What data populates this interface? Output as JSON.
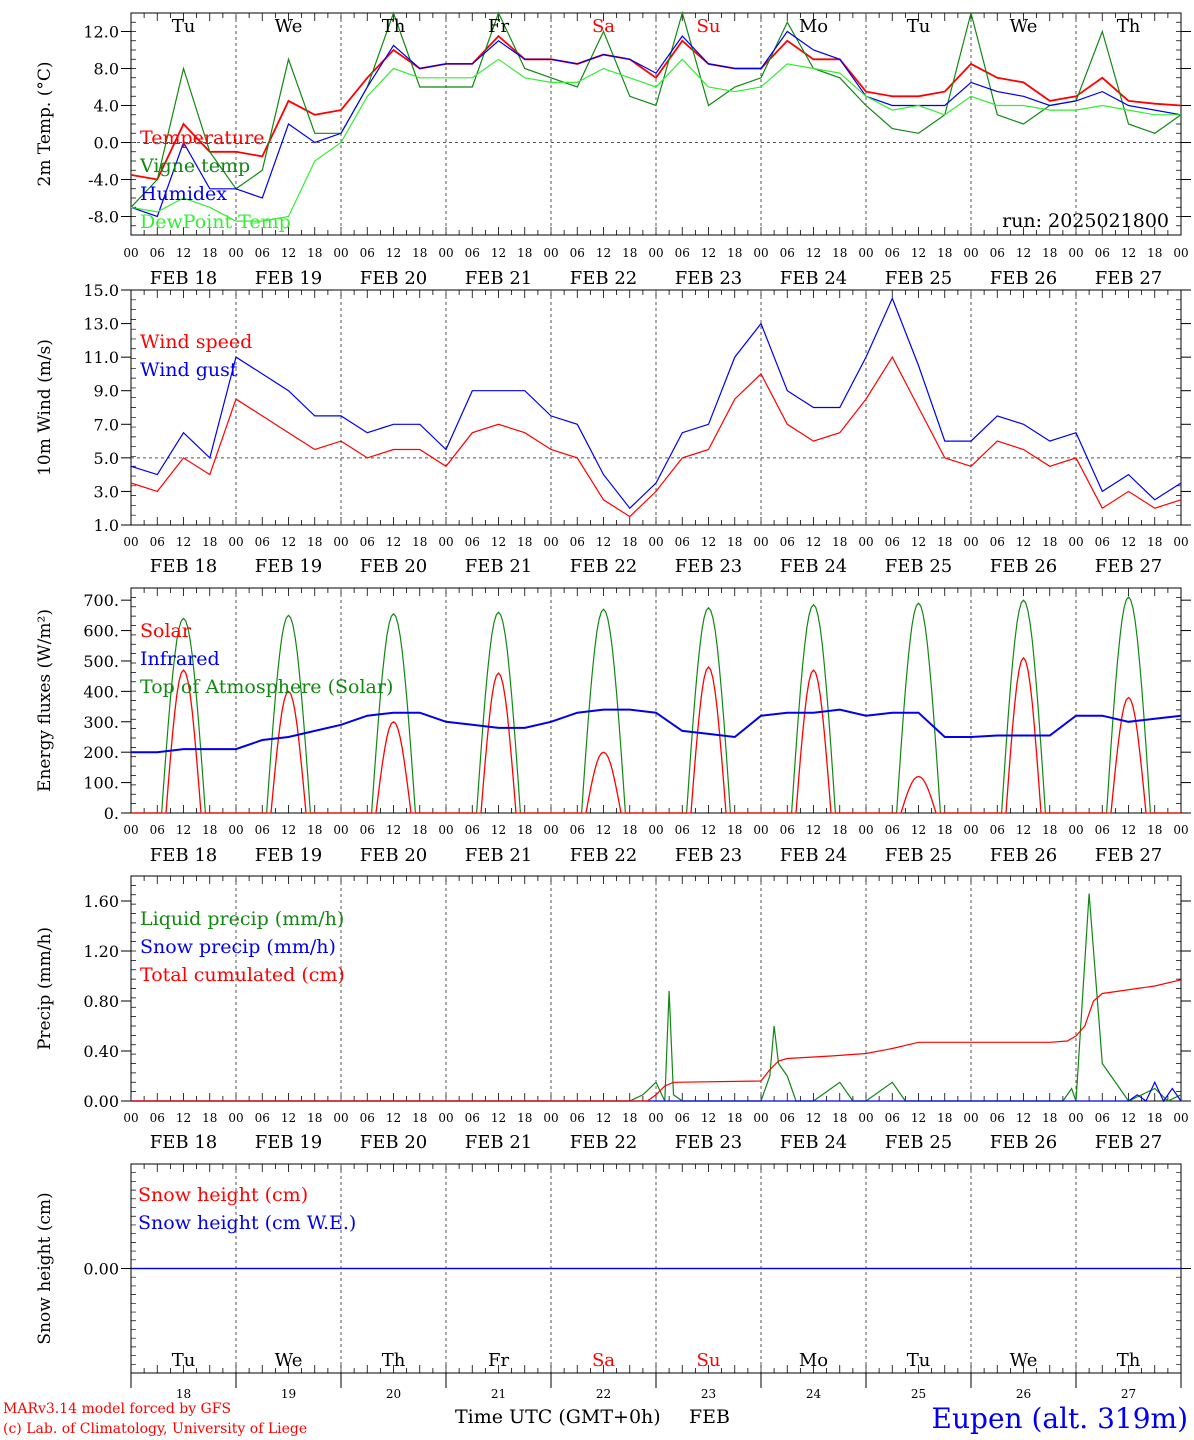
{
  "colors": {
    "red": "#ff0000",
    "green": "#118811",
    "blue": "#0000ee",
    "lightgreen": "#33ee33",
    "grid": "#555555"
  },
  "chart_data": [
    {
      "id": "temp",
      "type": "line",
      "ylabel": "2m Temp. (°C)",
      "ylim": [
        -10,
        14
      ],
      "yticks": [
        "12.0",
        "8.0",
        "4.0",
        "0.0",
        "-4.0",
        "-8.0"
      ],
      "ytick_values": [
        12,
        8,
        4,
        0,
        -4,
        -8
      ],
      "hline": 0,
      "annotation": "run: 2025021800",
      "day_labels_top": true,
      "series": [
        {
          "name": "Temperature",
          "color": "#ff0000",
          "x": [
            0,
            6,
            12,
            18,
            24,
            30,
            36,
            42,
            48,
            54,
            60,
            66,
            72,
            78,
            84,
            90,
            96,
            102,
            108,
            114,
            120,
            126,
            132,
            138,
            144,
            150,
            156,
            162,
            168,
            174,
            180,
            186,
            192,
            198,
            204,
            210,
            216,
            222,
            228,
            234,
            240
          ],
          "values": [
            -3.5,
            -4,
            2,
            -1,
            -1,
            -1.5,
            4.5,
            3,
            3.5,
            7,
            10,
            8,
            8.5,
            8.5,
            11.5,
            9,
            9,
            8.5,
            9.5,
            9,
            7,
            11,
            8.5,
            8,
            8,
            11,
            9,
            9,
            5.5,
            5,
            5,
            5.5,
            8.5,
            7,
            6.5,
            4.5,
            5,
            7,
            4.5,
            4.2,
            4
          ]
        },
        {
          "name": "Vigne temp",
          "color": "#118811",
          "x": [
            0,
            6,
            12,
            18,
            24,
            30,
            36,
            42,
            48,
            54,
            60,
            66,
            72,
            78,
            84,
            90,
            96,
            102,
            108,
            114,
            120,
            126,
            132,
            138,
            144,
            150,
            156,
            162,
            168,
            174,
            180,
            186,
            192,
            198,
            204,
            210,
            216,
            222,
            228,
            234,
            240
          ],
          "values": [
            -7,
            -4,
            8,
            -1,
            -5,
            -3,
            9,
            1,
            1,
            6,
            14,
            6,
            6,
            6,
            14,
            8,
            7,
            6,
            12,
            5,
            4,
            14,
            4,
            6,
            7,
            13,
            8,
            7,
            4,
            1.5,
            1,
            3,
            14,
            3,
            2,
            4,
            4.5,
            12,
            2,
            1,
            3
          ]
        },
        {
          "name": "Humidex",
          "color": "#0000ee",
          "x": [
            0,
            6,
            12,
            18,
            24,
            30,
            36,
            42,
            48,
            54,
            60,
            66,
            72,
            78,
            84,
            90,
            96,
            102,
            108,
            114,
            120,
            126,
            132,
            138,
            144,
            150,
            156,
            162,
            168,
            174,
            180,
            186,
            192,
            198,
            204,
            210,
            216,
            222,
            228,
            234,
            240
          ],
          "values": [
            -7,
            -8,
            0,
            -5,
            -5,
            -6,
            2,
            0,
            1,
            6,
            10.5,
            8,
            8.5,
            8.5,
            11,
            9,
            9,
            8.5,
            9.5,
            9,
            7.5,
            11.5,
            8.5,
            8,
            8,
            12,
            10,
            9,
            5,
            4,
            4,
            4,
            6.5,
            5.5,
            5,
            4,
            4.5,
            5.5,
            4,
            3.5,
            3
          ]
        },
        {
          "name": "DewPoint Temp",
          "color": "#33ee33",
          "x": [
            0,
            6,
            12,
            18,
            24,
            30,
            36,
            42,
            48,
            54,
            60,
            66,
            72,
            78,
            84,
            90,
            96,
            102,
            108,
            114,
            120,
            126,
            132,
            138,
            144,
            150,
            156,
            162,
            168,
            174,
            180,
            186,
            192,
            198,
            204,
            210,
            216,
            222,
            228,
            234,
            240
          ],
          "values": [
            -7,
            -7.5,
            -6,
            -7,
            -8.5,
            -8.5,
            -8,
            -2,
            0,
            5,
            8,
            7,
            7,
            7,
            9,
            7,
            6.5,
            6.5,
            8,
            7,
            6,
            9,
            6,
            5.5,
            6,
            8.5,
            8,
            7.5,
            5,
            3.5,
            4,
            3,
            5,
            4,
            4,
            3.5,
            3.5,
            4,
            3.5,
            3,
            3
          ]
        }
      ],
      "legend": [
        "Temperature",
        "Vigne temp",
        "Humidex",
        "DewPoint Temp"
      ]
    },
    {
      "id": "wind",
      "type": "line",
      "ylabel": "10m Wind (m/s)",
      "ylim": [
        1,
        15
      ],
      "yticks": [
        "15.0",
        "13.0",
        "11.0",
        "9.0",
        "7.0",
        "5.0",
        "3.0",
        "1.0"
      ],
      "ytick_values": [
        15,
        13,
        11,
        9,
        7,
        5,
        3,
        1
      ],
      "hline": 5,
      "series": [
        {
          "name": "Wind speed",
          "color": "#ff0000",
          "x": [
            0,
            6,
            12,
            18,
            24,
            30,
            36,
            42,
            48,
            54,
            60,
            66,
            72,
            78,
            84,
            90,
            96,
            102,
            108,
            114,
            120,
            126,
            132,
            138,
            144,
            150,
            156,
            162,
            168,
            174,
            180,
            186,
            192,
            198,
            204,
            210,
            216,
            222,
            228,
            234,
            240
          ],
          "values": [
            3.5,
            3,
            5,
            4,
            8.5,
            7.5,
            6.5,
            5.5,
            6,
            5,
            5.5,
            5.5,
            4.5,
            6.5,
            7,
            6.5,
            5.5,
            5,
            2.5,
            1.5,
            3,
            5,
            5.5,
            8.5,
            10,
            7,
            6,
            6.5,
            8.5,
            11,
            8,
            5,
            4.5,
            6,
            5.5,
            4.5,
            5,
            2,
            3,
            2,
            2.5
          ]
        },
        {
          "name": "Wind gust",
          "color": "#0000ee",
          "x": [
            0,
            6,
            12,
            18,
            24,
            30,
            36,
            42,
            48,
            54,
            60,
            66,
            72,
            78,
            84,
            90,
            96,
            102,
            108,
            114,
            120,
            126,
            132,
            138,
            144,
            150,
            156,
            162,
            168,
            174,
            180,
            186,
            192,
            198,
            204,
            210,
            216,
            222,
            228,
            234,
            240
          ],
          "values": [
            4.5,
            4,
            6.5,
            5,
            11,
            10,
            9,
            7.5,
            7.5,
            6.5,
            7,
            7,
            5.5,
            9,
            9,
            9,
            7.5,
            7,
            4,
            2,
            3.5,
            6.5,
            7,
            11,
            13,
            9,
            8,
            8,
            11,
            14.5,
            10.5,
            6,
            6,
            7.5,
            7,
            6,
            6.5,
            3,
            4,
            2.5,
            3.5
          ]
        }
      ],
      "legend": [
        "Wind speed",
        "Wind gust"
      ]
    },
    {
      "id": "energy",
      "type": "line",
      "ylabel": "Energy fluxes (W/m²)",
      "ylim": [
        0,
        740
      ],
      "yticks": [
        "700.",
        "600.",
        "500.",
        "400.",
        "300.",
        "200.",
        "100.",
        "0."
      ],
      "ytick_values": [
        700,
        600,
        500,
        400,
        300,
        200,
        100,
        0
      ],
      "solar_peaks": [
        470,
        400,
        300,
        460,
        200,
        480,
        470,
        120,
        510,
        380
      ],
      "toa_peaks": [
        640,
        650,
        655,
        660,
        670,
        675,
        685,
        690,
        700,
        710
      ],
      "series": [
        {
          "name": "Solar",
          "color": "#ff0000"
        },
        {
          "name": "Infrared",
          "color": "#0000ee",
          "x": [
            0,
            6,
            12,
            18,
            24,
            30,
            36,
            42,
            48,
            54,
            60,
            66,
            72,
            78,
            84,
            90,
            96,
            102,
            108,
            114,
            120,
            126,
            132,
            138,
            144,
            150,
            156,
            162,
            168,
            174,
            180,
            186,
            192,
            198,
            204,
            210,
            216,
            222,
            228,
            234,
            240
          ],
          "values": [
            200,
            200,
            210,
            210,
            210,
            240,
            250,
            270,
            290,
            320,
            330,
            330,
            300,
            290,
            280,
            280,
            300,
            330,
            340,
            340,
            330,
            270,
            260,
            250,
            320,
            330,
            330,
            340,
            320,
            330,
            330,
            250,
            250,
            255,
            255,
            255,
            320,
            320,
            300,
            310,
            320
          ]
        },
        {
          "name": "Top of Atmosphere (Solar)",
          "color": "#118811"
        }
      ],
      "legend": [
        "Solar",
        "Infrared",
        "Top of Atmosphere (Solar)"
      ]
    },
    {
      "id": "precip",
      "type": "line",
      "ylabel": "Precip (mm/h)",
      "ylim": [
        0,
        1.8
      ],
      "yticks": [
        "1.60",
        "1.20",
        "0.80",
        "0.40",
        "0.00"
      ],
      "ytick_values": [
        1.6,
        1.2,
        0.8,
        0.4,
        0
      ],
      "series": [
        {
          "name": "Liquid precip (mm/h)",
          "color": "#118811",
          "x": [
            0,
            114,
            117,
            120,
            122,
            123,
            124,
            126,
            129,
            144,
            146,
            147,
            148,
            150,
            152,
            156,
            162,
            165,
            168,
            174,
            177,
            180,
            186,
            192,
            204,
            213,
            215,
            216,
            219,
            222,
            228,
            231,
            234,
            237,
            240
          ],
          "values": [
            0,
            0,
            0.05,
            0.15,
            0,
            0.88,
            0.05,
            0,
            0,
            0,
            0.2,
            0.6,
            0.3,
            0.2,
            0,
            0,
            0.15,
            0,
            0,
            0.15,
            0,
            0,
            0,
            0,
            0,
            0,
            0.1,
            0,
            1.66,
            0.3,
            0,
            0.05,
            0.1,
            0,
            0.05
          ]
        },
        {
          "name": "Snow precip (mm/h)",
          "color": "#0000ee",
          "x": [
            0,
            228,
            230,
            232,
            234,
            236,
            238,
            240
          ],
          "values": [
            0,
            0,
            0.05,
            0,
            0.15,
            0,
            0.1,
            0
          ]
        },
        {
          "name": "Total cumulated (cm)",
          "color": "#ff0000",
          "x": [
            0,
            118,
            120,
            122,
            124,
            144,
            146,
            148,
            150,
            160,
            168,
            174,
            180,
            186,
            210,
            214,
            216,
            218,
            220,
            222,
            226,
            234,
            240
          ],
          "values": [
            0,
            0,
            0.05,
            0.12,
            0.15,
            0.16,
            0.25,
            0.32,
            0.34,
            0.36,
            0.38,
            0.42,
            0.47,
            0.47,
            0.47,
            0.48,
            0.52,
            0.6,
            0.8,
            0.86,
            0.88,
            0.92,
            0.97
          ]
        }
      ],
      "legend": [
        "Liquid precip (mm/h)",
        "Snow precip (mm/h)",
        "Total cumulated (cm)"
      ]
    },
    {
      "id": "snow",
      "type": "line",
      "ylabel": "Snow height (cm)",
      "ylim": [
        -1,
        1
      ],
      "yticks": [
        "0.00"
      ],
      "ytick_values": [
        0
      ],
      "series": [
        {
          "name": "Snow height (cm)",
          "color": "#ff0000",
          "x": [
            0,
            240
          ],
          "values": [
            0,
            0
          ]
        },
        {
          "name": "Snow height (cm W.E.)",
          "color": "#0000ee",
          "x": [
            0,
            240
          ],
          "values": [
            0,
            0
          ]
        }
      ],
      "legend": [
        "Snow height (cm)",
        "Snow height (cm W.E.)"
      ]
    }
  ],
  "days": [
    {
      "abbr": "Tu",
      "num": "18",
      "date": "FEB 18",
      "weekend": false
    },
    {
      "abbr": "We",
      "num": "19",
      "date": "FEB 19",
      "weekend": false
    },
    {
      "abbr": "Th",
      "num": "20",
      "date": "FEB 20",
      "weekend": false
    },
    {
      "abbr": "Fr",
      "num": "21",
      "date": "FEB 21",
      "weekend": false
    },
    {
      "abbr": "Sa",
      "num": "22",
      "date": "FEB 22",
      "weekend": true
    },
    {
      "abbr": "Su",
      "num": "23",
      "date": "FEB 23",
      "weekend": true
    },
    {
      "abbr": "Mo",
      "num": "24",
      "date": "FEB 24",
      "weekend": false
    },
    {
      "abbr": "Tu",
      "num": "25",
      "date": "FEB 25",
      "weekend": false
    },
    {
      "abbr": "We",
      "num": "26",
      "date": "FEB 26",
      "weekend": false
    },
    {
      "abbr": "Th",
      "num": "27",
      "date": "FEB 27",
      "weekend": false
    }
  ],
  "hour_labels": [
    "00",
    "06",
    "12",
    "18"
  ],
  "footer": {
    "model_line": "MARv3.14 model forced by GFS",
    "lab_line": "(c) Lab. of Climatology, University of Liege",
    "xlabel": "Time UTC (GMT+0h)",
    "month": "FEB",
    "station": "Eupen (alt. 319m)"
  }
}
